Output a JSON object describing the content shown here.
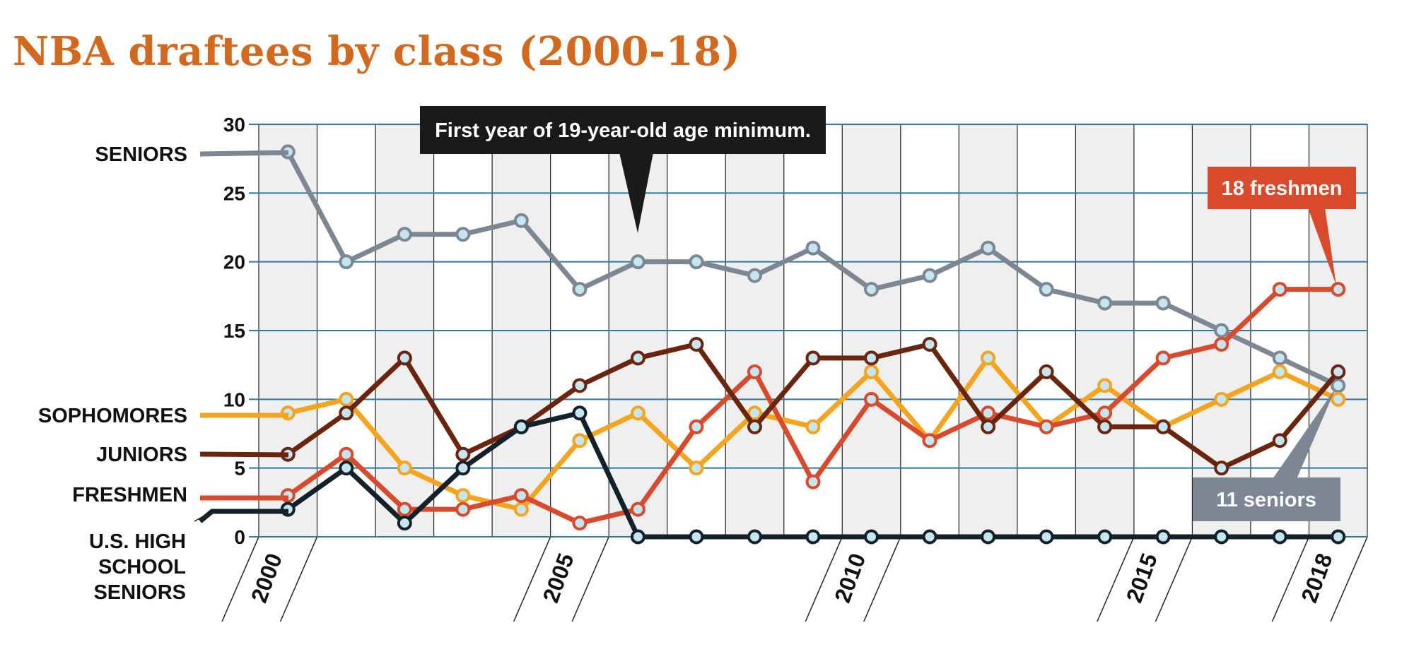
{
  "chart_data": {
    "type": "line",
    "title": "NBA draftees by class (2000-18)",
    "x": [
      2000,
      2001,
      2002,
      2003,
      2004,
      2005,
      2006,
      2007,
      2008,
      2009,
      2010,
      2011,
      2012,
      2013,
      2014,
      2015,
      2016,
      2017,
      2018
    ],
    "x_tick_labels": [
      {
        "x": 2000,
        "label": "2000"
      },
      {
        "x": 2005,
        "label": "2005"
      },
      {
        "x": 2010,
        "label": "2010"
      },
      {
        "x": 2015,
        "label": "2015"
      },
      {
        "x": 2018,
        "label": "2018"
      }
    ],
    "y_ticks": [
      0,
      5,
      10,
      15,
      20,
      25,
      30
    ],
    "ylim": [
      0,
      30
    ],
    "grid": true,
    "series": [
      {
        "name": "SENIORS",
        "color": "#7d8794",
        "values": [
          28,
          20,
          22,
          22,
          23,
          18,
          20,
          20,
          19,
          21,
          18,
          19,
          21,
          18,
          17,
          17,
          15,
          13,
          11
        ]
      },
      {
        "name": "SOPHOMORES",
        "color": "#f4a41d",
        "values": [
          9,
          10,
          5,
          3,
          2,
          7,
          9,
          5,
          9,
          8,
          12,
          7,
          13,
          8,
          11,
          8,
          10,
          12,
          10
        ]
      },
      {
        "name": "JUNIORS",
        "color": "#6b250e",
        "values": [
          6,
          9,
          13,
          6,
          8,
          11,
          13,
          14,
          8,
          13,
          13,
          14,
          8,
          12,
          8,
          8,
          5,
          7,
          12
        ]
      },
      {
        "name": "FRESHMEN",
        "color": "#d94a2c",
        "values": [
          3,
          6,
          2,
          2,
          3,
          1,
          2,
          8,
          12,
          4,
          10,
          7,
          9,
          8,
          9,
          13,
          14,
          18,
          18
        ]
      },
      {
        "name": "U.S. HIGH SCHOOL SENIORS",
        "color": "#13212a",
        "values": [
          2,
          5,
          1,
          5,
          8,
          9,
          0,
          0,
          0,
          0,
          0,
          0,
          0,
          0,
          0,
          0,
          0,
          0,
          0
        ]
      }
    ],
    "annotations": [
      {
        "text": "First year of 19-year-old age minimum."
      },
      {
        "text": "18 freshmen"
      },
      {
        "text": "11 seniors"
      }
    ]
  },
  "style": {
    "title_color": "#d2691e",
    "grid_color": "#2b7a9c",
    "band_color": "#efefef",
    "point_fill": "#c5e6f0",
    "callout_dark": "#1a1a1a",
    "callout_red": "#d94a2c",
    "callout_gray": "#7d8794"
  }
}
